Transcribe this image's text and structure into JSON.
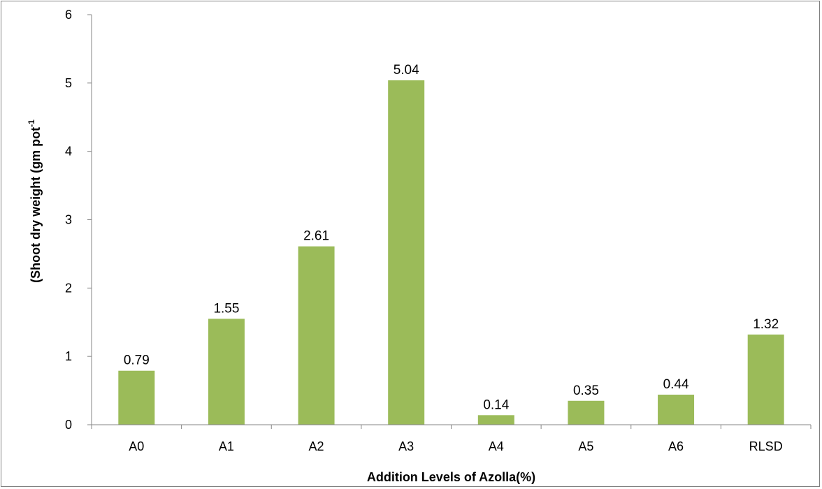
{
  "chart_data": {
    "type": "bar",
    "title": "",
    "xlabel": "Addition Levels of Azolla(%)",
    "ylabel": "(Shoot dry weight (gm pot",
    "ylabel_superscript": "-1",
    "categories": [
      "A0",
      "A1",
      "A2",
      "A3",
      "A4",
      "A5",
      "A6",
      "RLSD"
    ],
    "values": [
      0.79,
      1.55,
      2.61,
      5.04,
      0.14,
      0.35,
      0.44,
      1.32
    ],
    "data_labels": [
      "0.79",
      "1.55",
      "2.61",
      "5.04",
      "0.14",
      "0.35",
      "0.44",
      "1.32"
    ],
    "ylim": [
      0,
      6
    ],
    "yticks": [
      "0",
      "1",
      "2",
      "3",
      "4",
      "5",
      "6"
    ],
    "grid": false,
    "legend": "none",
    "bar_color": "#9bbb59",
    "axis_color": "#868686"
  }
}
